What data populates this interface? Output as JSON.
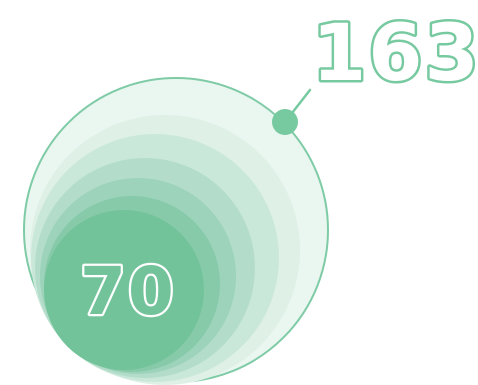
{
  "values": {
    "max": "163",
    "min": "70"
  },
  "colors": {
    "outer_fill": "#eaf6f0",
    "outer_stroke": "#7fcba6",
    "layer_1": "#dff0e7",
    "layer_2": "#cae8d9",
    "layer_3": "#b3ddca",
    "layer_4": "#9cd3ba",
    "layer_5": "#86caa9",
    "core": "#72c39a",
    "connector": "#77c9a0",
    "max_text_stroke": "#77c9a0",
    "min_text_stroke": "#ffffff"
  }
}
